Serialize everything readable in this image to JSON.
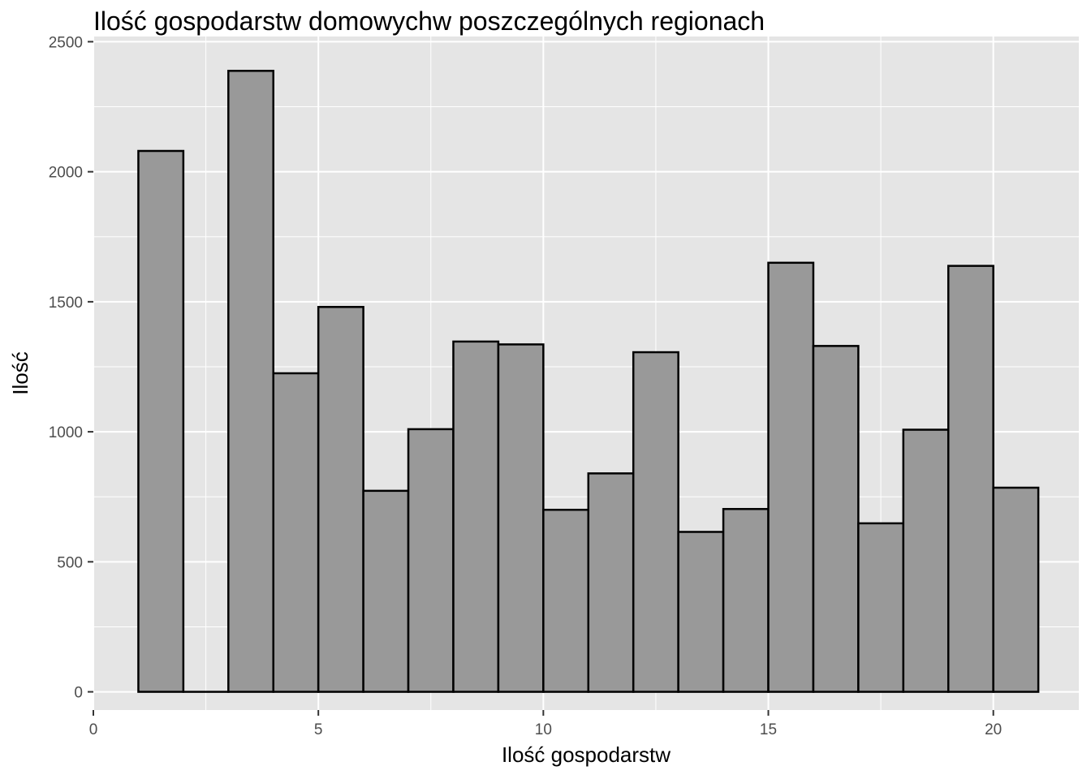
{
  "chart_data": {
    "type": "bar",
    "title": "Ilość gospodarstw domowychw poszczególnych regionach",
    "xlabel": "Ilość gospodarstw",
    "ylabel": "Ilość",
    "xlim": [
      0,
      21.9
    ],
    "ylim": [
      -70,
      2520
    ],
    "x_ticks": [
      0,
      5,
      10,
      15,
      20
    ],
    "y_ticks": [
      0,
      500,
      1000,
      1500,
      2000,
      2500
    ],
    "grid": true,
    "bin_width": 1,
    "bins": [
      {
        "x0": 1,
        "x1": 2,
        "value": 2080
      },
      {
        "x0": 2,
        "x1": 3,
        "value": 0
      },
      {
        "x0": 3,
        "x1": 4,
        "value": 2388
      },
      {
        "x0": 4,
        "x1": 5,
        "value": 1225
      },
      {
        "x0": 5,
        "x1": 6,
        "value": 1480
      },
      {
        "x0": 6,
        "x1": 7,
        "value": 773
      },
      {
        "x0": 7,
        "x1": 8,
        "value": 1010
      },
      {
        "x0": 8,
        "x1": 9,
        "value": 1347
      },
      {
        "x0": 9,
        "x1": 10,
        "value": 1336
      },
      {
        "x0": 10,
        "x1": 11,
        "value": 700
      },
      {
        "x0": 11,
        "x1": 12,
        "value": 840
      },
      {
        "x0": 12,
        "x1": 13,
        "value": 1306
      },
      {
        "x0": 13,
        "x1": 14,
        "value": 615
      },
      {
        "x0": 14,
        "x1": 15,
        "value": 703
      },
      {
        "x0": 15,
        "x1": 16,
        "value": 1650
      },
      {
        "x0": 16,
        "x1": 17,
        "value": 1330
      },
      {
        "x0": 17,
        "x1": 18,
        "value": 648
      },
      {
        "x0": 18,
        "x1": 19,
        "value": 1008
      },
      {
        "x0": 19,
        "x1": 20,
        "value": 1638
      },
      {
        "x0": 20,
        "x1": 21,
        "value": 785
      }
    ],
    "bar_fill": "#999999",
    "bar_stroke": "#000000",
    "panel_background": "#e5e5e5",
    "grid_color": "#ffffff"
  }
}
